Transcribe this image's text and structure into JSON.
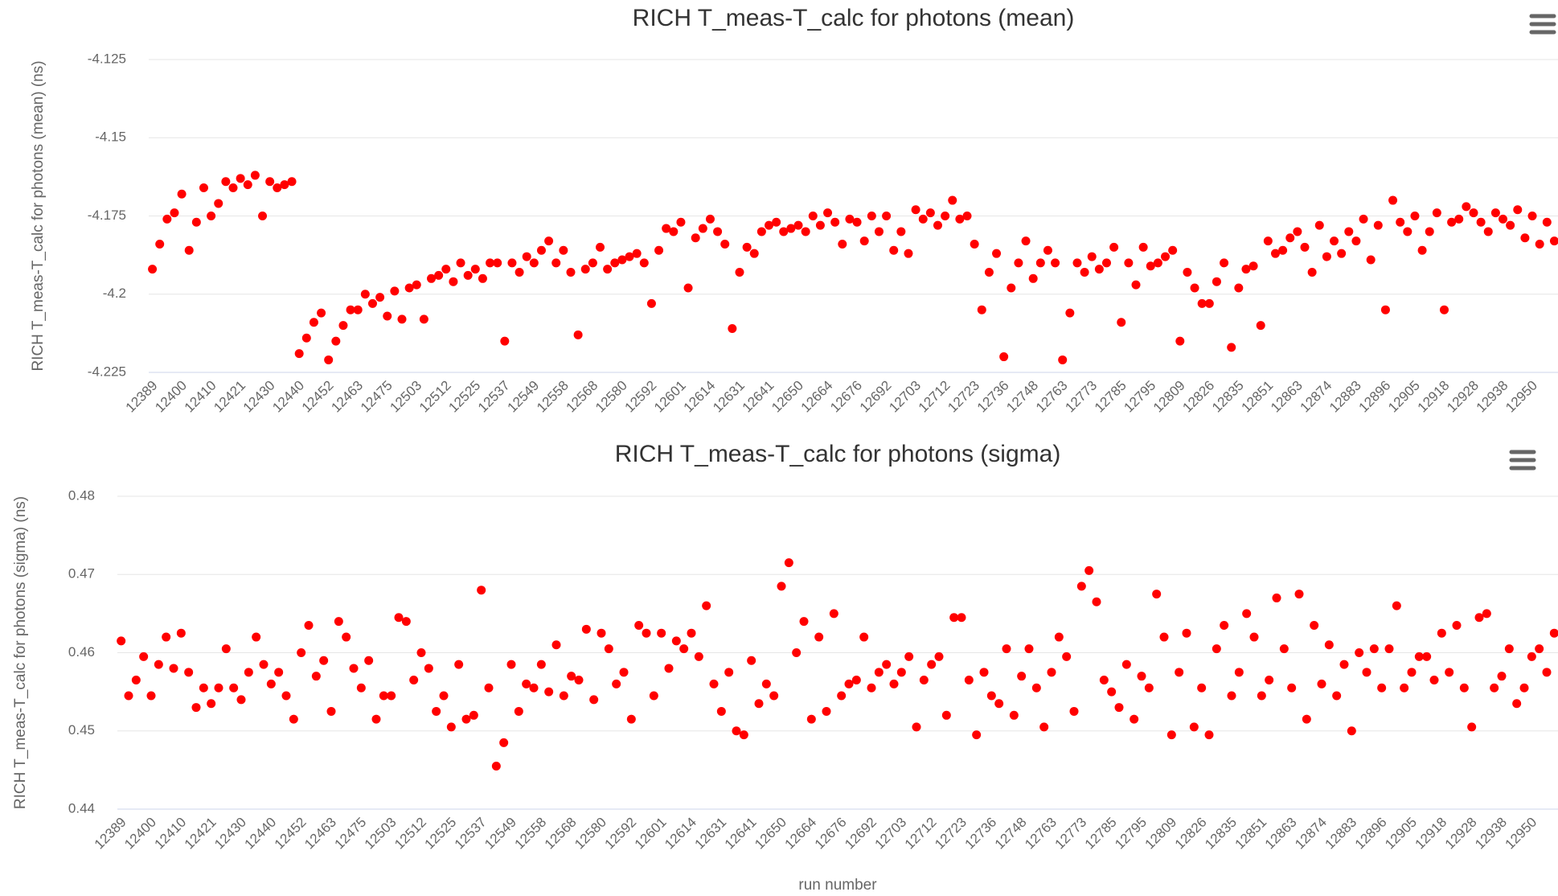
{
  "chart_data": [
    {
      "type": "scatter",
      "title": "RICH T_meas-T_calc for photons (mean)",
      "y_label": "RICH T_meas-T_calc for photons (mean) (ns)",
      "color": "#ff0000",
      "grid": true,
      "ylim": [
        -4.225,
        -4.125
      ],
      "yticks": [
        -4.225,
        -4.2,
        -4.175,
        -4.15,
        -4.125
      ],
      "categories": [
        "12389",
        null,
        null,
        null,
        "12400",
        null,
        null,
        null,
        "12410",
        null,
        null,
        null,
        "12421",
        null,
        null,
        null,
        "12430",
        null,
        null,
        null,
        "12440",
        null,
        null,
        null,
        "12452",
        null,
        null,
        null,
        "12463",
        null,
        null,
        null,
        "12475",
        null,
        null,
        null,
        "12503",
        null,
        null,
        null,
        "12512",
        null,
        null,
        null,
        "12525",
        null,
        null,
        null,
        "12537",
        null,
        null,
        null,
        "12549",
        null,
        null,
        null,
        "12558",
        null,
        null,
        null,
        "12568",
        null,
        null,
        null,
        "12580",
        null,
        null,
        null,
        "12592",
        null,
        null,
        null,
        "12601",
        null,
        null,
        null,
        "12614",
        null,
        null,
        null,
        "12631",
        null,
        null,
        null,
        "12641",
        null,
        null,
        null,
        "12650",
        null,
        null,
        null,
        "12664",
        null,
        null,
        null,
        "12676",
        null,
        null,
        null,
        "12692",
        null,
        null,
        null,
        "12703",
        null,
        null,
        null,
        "12712",
        null,
        null,
        null,
        "12723",
        null,
        null,
        null,
        "12736",
        null,
        null,
        null,
        "12748",
        null,
        null,
        null,
        "12763",
        null,
        null,
        null,
        "12773",
        null,
        null,
        null,
        "12785",
        null,
        null,
        null,
        "12795",
        null,
        null,
        null,
        "12809",
        null,
        null,
        null,
        "12826",
        null,
        null,
        null,
        "12835",
        null,
        null,
        null,
        "12851",
        null,
        null,
        null,
        "12863",
        null,
        null,
        null,
        "12874",
        null,
        null,
        null,
        "12883",
        null,
        null,
        null,
        "12896",
        null,
        null,
        null,
        "12905",
        null,
        null,
        null,
        "12918",
        null,
        null,
        null,
        "12928",
        null,
        null,
        null,
        "12938",
        null,
        null,
        null,
        "12950",
        null,
        null,
        null
      ],
      "values": [
        -4.192,
        -4.184,
        -4.176,
        -4.174,
        -4.168,
        -4.186,
        -4.177,
        -4.166,
        -4.175,
        -4.171,
        -4.164,
        -4.166,
        -4.163,
        -4.165,
        -4.162,
        -4.175,
        -4.164,
        -4.166,
        -4.165,
        -4.164,
        -4.219,
        -4.214,
        -4.209,
        -4.206,
        -4.221,
        -4.215,
        -4.21,
        -4.205,
        -4.205,
        -4.2,
        -4.203,
        -4.201,
        -4.207,
        -4.199,
        -4.208,
        -4.198,
        -4.197,
        -4.208,
        -4.195,
        -4.194,
        -4.192,
        -4.196,
        -4.19,
        -4.194,
        -4.192,
        -4.195,
        -4.19,
        -4.19,
        -4.215,
        -4.19,
        -4.193,
        -4.188,
        -4.19,
        -4.186,
        -4.183,
        -4.19,
        -4.186,
        -4.193,
        -4.213,
        -4.192,
        -4.19,
        -4.185,
        -4.192,
        -4.19,
        -4.189,
        -4.188,
        -4.187,
        -4.19,
        -4.203,
        -4.186,
        -4.179,
        -4.18,
        -4.177,
        -4.198,
        -4.182,
        -4.179,
        -4.176,
        -4.18,
        -4.184,
        -4.211,
        -4.193,
        -4.185,
        -4.187,
        -4.18,
        -4.178,
        -4.177,
        -4.18,
        -4.179,
        -4.178,
        -4.18,
        -4.175,
        -4.178,
        -4.174,
        -4.177,
        -4.184,
        -4.176,
        -4.177,
        -4.183,
        -4.175,
        -4.18,
        -4.175,
        -4.186,
        -4.18,
        -4.187,
        -4.173,
        -4.176,
        -4.174,
        -4.178,
        -4.175,
        -4.17,
        -4.176,
        -4.175,
        -4.184,
        -4.205,
        -4.193,
        -4.187,
        -4.22,
        -4.198,
        -4.19,
        -4.183,
        -4.195,
        -4.19,
        -4.186,
        -4.19,
        -4.221,
        -4.206,
        -4.19,
        -4.193,
        -4.188,
        -4.192,
        -4.19,
        -4.185,
        -4.209,
        -4.19,
        -4.197,
        -4.185,
        -4.191,
        -4.19,
        -4.188,
        -4.186,
        -4.215,
        -4.193,
        -4.198,
        -4.203,
        -4.203,
        -4.196,
        -4.19,
        -4.217,
        -4.198,
        -4.192,
        -4.191,
        -4.21,
        -4.183,
        -4.187,
        -4.186,
        -4.182,
        -4.18,
        -4.185,
        -4.193,
        -4.178,
        -4.188,
        -4.183,
        -4.187,
        -4.18,
        -4.183,
        -4.176,
        -4.189,
        -4.178,
        -4.205,
        -4.17,
        -4.177,
        -4.18,
        -4.175,
        -4.186,
        -4.18,
        -4.174,
        -4.205,
        -4.177,
        -4.176,
        -4.172,
        -4.174,
        -4.177,
        -4.18,
        -4.174,
        -4.176,
        -4.178,
        -4.173,
        -4.182,
        -4.175,
        -4.184,
        -4.177,
        -4.183
      ]
    },
    {
      "type": "scatter",
      "title": "RICH T_meas-T_calc for photons (sigma)",
      "y_label": "RICH T_meas-T_calc for photons (sigma) (ns)",
      "x_label": "run number",
      "color": "#ff0000",
      "grid": true,
      "ylim": [
        0.44,
        0.48
      ],
      "yticks": [
        0.44,
        0.45,
        0.46,
        0.47,
        0.48
      ],
      "categories": [
        "12389",
        null,
        null,
        null,
        "12400",
        null,
        null,
        null,
        "12410",
        null,
        null,
        null,
        "12421",
        null,
        null,
        null,
        "12430",
        null,
        null,
        null,
        "12440",
        null,
        null,
        null,
        "12452",
        null,
        null,
        null,
        "12463",
        null,
        null,
        null,
        "12475",
        null,
        null,
        null,
        "12503",
        null,
        null,
        null,
        "12512",
        null,
        null,
        null,
        "12525",
        null,
        null,
        null,
        "12537",
        null,
        null,
        null,
        "12549",
        null,
        null,
        null,
        "12558",
        null,
        null,
        null,
        "12568",
        null,
        null,
        null,
        "12580",
        null,
        null,
        null,
        "12592",
        null,
        null,
        null,
        "12601",
        null,
        null,
        null,
        "12614",
        null,
        null,
        null,
        "12631",
        null,
        null,
        null,
        "12641",
        null,
        null,
        null,
        "12650",
        null,
        null,
        null,
        "12664",
        null,
        null,
        null,
        "12676",
        null,
        null,
        null,
        "12692",
        null,
        null,
        null,
        "12703",
        null,
        null,
        null,
        "12712",
        null,
        null,
        null,
        "12723",
        null,
        null,
        null,
        "12736",
        null,
        null,
        null,
        "12748",
        null,
        null,
        null,
        "12763",
        null,
        null,
        null,
        "12773",
        null,
        null,
        null,
        "12785",
        null,
        null,
        null,
        "12795",
        null,
        null,
        null,
        "12809",
        null,
        null,
        null,
        "12826",
        null,
        null,
        null,
        "12835",
        null,
        null,
        null,
        "12851",
        null,
        null,
        null,
        "12863",
        null,
        null,
        null,
        "12874",
        null,
        null,
        null,
        "12883",
        null,
        null,
        null,
        "12896",
        null,
        null,
        null,
        "12905",
        null,
        null,
        null,
        "12918",
        null,
        null,
        null,
        "12928",
        null,
        null,
        null,
        "12938",
        null,
        null,
        null,
        "12950",
        null,
        null,
        null
      ],
      "values": [
        0.4615,
        0.4545,
        0.4565,
        0.4595,
        0.4545,
        0.4585,
        0.462,
        0.458,
        0.4625,
        0.4575,
        0.453,
        0.4555,
        0.4535,
        0.4555,
        0.4605,
        0.4555,
        0.454,
        0.4575,
        0.462,
        0.4585,
        0.456,
        0.4575,
        0.4545,
        0.4515,
        0.46,
        0.4635,
        0.457,
        0.459,
        0.4525,
        0.464,
        0.462,
        0.458,
        0.4555,
        0.459,
        0.4515,
        0.4545,
        0.4545,
        0.4645,
        0.464,
        0.4565,
        0.46,
        0.458,
        0.4525,
        0.4545,
        0.4505,
        0.4585,
        0.4515,
        0.452,
        0.468,
        0.4555,
        0.4455,
        0.4485,
        0.4585,
        0.4525,
        0.456,
        0.4555,
        0.4585,
        0.455,
        0.461,
        0.4545,
        0.457,
        0.4565,
        0.463,
        0.454,
        0.4625,
        0.4605,
        0.456,
        0.4575,
        0.4515,
        0.4635,
        0.4625,
        0.4545,
        0.4625,
        0.458,
        0.4615,
        0.4605,
        0.4625,
        0.4595,
        0.466,
        0.456,
        0.4525,
        0.4575,
        0.45,
        0.4495,
        0.459,
        0.4535,
        0.456,
        0.4545,
        0.4685,
        0.4715,
        0.46,
        0.464,
        0.4515,
        0.462,
        0.4525,
        0.465,
        0.4545,
        0.456,
        0.4565,
        0.462,
        0.4555,
        0.4575,
        0.4585,
        0.456,
        0.4575,
        0.4595,
        0.4505,
        0.4565,
        0.4585,
        0.4595,
        0.452,
        0.4645,
        0.4645,
        0.4565,
        0.4495,
        0.4575,
        0.4545,
        0.4535,
        0.4605,
        0.452,
        0.457,
        0.4605,
        0.4555,
        0.4505,
        0.4575,
        0.462,
        0.4595,
        0.4525,
        0.4685,
        0.4705,
        0.4665,
        0.4565,
        0.455,
        0.453,
        0.4585,
        0.4515,
        0.457,
        0.4555,
        0.4675,
        0.462,
        0.4495,
        0.4575,
        0.4625,
        0.4505,
        0.4555,
        0.4495,
        0.4605,
        0.4635,
        0.4545,
        0.4575,
        0.465,
        0.462,
        0.4545,
        0.4565,
        0.467,
        0.4605,
        0.4555,
        0.4675,
        0.4515,
        0.4635,
        0.456,
        0.461,
        0.4545,
        0.4585,
        0.45,
        0.46,
        0.4575,
        0.4605,
        0.4555,
        0.4605,
        0.466,
        0.4555,
        0.4575,
        0.4595,
        0.4595,
        0.4565,
        0.4625,
        0.4575,
        0.4635,
        0.4555,
        0.4505,
        0.4645,
        0.465,
        0.4555,
        0.457,
        0.4605,
        0.4535,
        0.4555,
        0.4595,
        0.4605,
        0.4575,
        0.4625
      ]
    }
  ]
}
